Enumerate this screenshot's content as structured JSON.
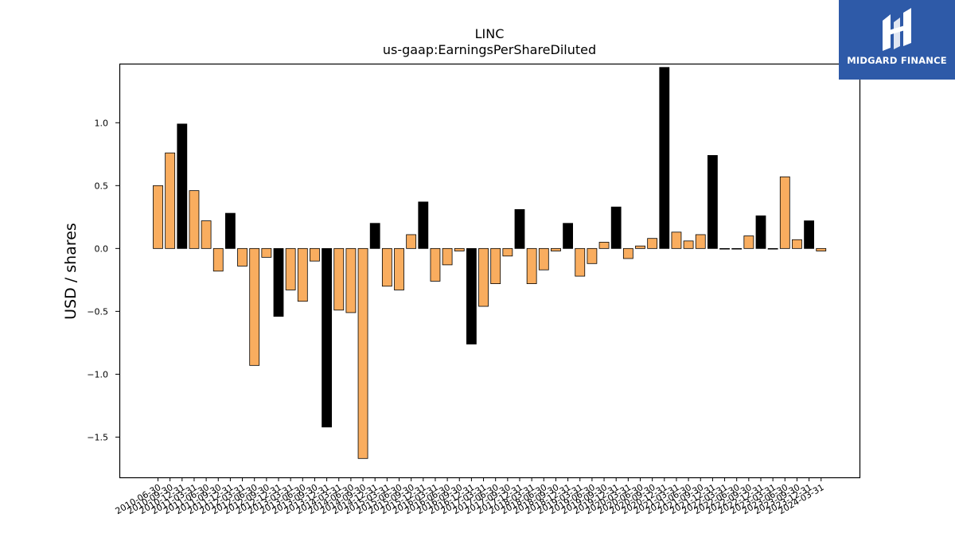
{
  "brand": {
    "name": "MIDGARD FINANCE",
    "bg_color": "#2e5aa8"
  },
  "chart_data": {
    "type": "bar",
    "title": "LINC",
    "subtitle": "us-gaap:EarningsPerShareDiluted",
    "ylabel": "USD / shares",
    "xlabel": "",
    "ylim": [
      -1.82,
      1.47
    ],
    "yticks": [
      1.0,
      0.5,
      0.0,
      -0.5,
      -1.0,
      -1.5
    ],
    "ytick_labels": [
      "1.0",
      "0.5",
      "0.0",
      "−0.5",
      "−1.0",
      "−1.5"
    ],
    "colors": {
      "quarter": "#f9ad5f",
      "annual": "#000000"
    },
    "categories": [
      "2010-06-30",
      "2010-09-30",
      "2010-12-31",
      "2011-03-31",
      "2011-06-30",
      "2011-09-30",
      "2011-12-31",
      "2012-03-31",
      "2012-06-30",
      "2012-09-30",
      "2012-12-31",
      "2013-03-31",
      "2013-06-30",
      "2013-09-30",
      "2013-12-31",
      "2014-03-31",
      "2014-06-30",
      "2014-09-30",
      "2014-12-31",
      "2015-03-31",
      "2015-06-30",
      "2015-09-30",
      "2015-12-31",
      "2016-03-31",
      "2016-06-30",
      "2016-09-30",
      "2016-12-31",
      "2017-03-31",
      "2017-06-30",
      "2017-09-30",
      "2017-12-31",
      "2018-03-31",
      "2018-06-30",
      "2018-09-30",
      "2018-12-31",
      "2019-03-31",
      "2019-06-30",
      "2019-09-30",
      "2019-12-31",
      "2020-03-31",
      "2020-06-30",
      "2020-09-30",
      "2020-12-31",
      "2021-03-31",
      "2021-06-30",
      "2021-09-30",
      "2021-12-31",
      "2022-03-31",
      "2022-06-30",
      "2022-09-30",
      "2022-12-31",
      "2023-03-31",
      "2023-06-30",
      "2023-09-30",
      "2023-12-31",
      "2024-03-31"
    ],
    "tick_labels": [
      "2010-06-30",
      "2010-09-30",
      "2010-12-31",
      "2011-03-31",
      "2011-06-30",
      "2011-09-30",
      "2011-12-31",
      "2012-03-31",
      "2012-06-30",
      "2012-09-30",
      "2012-12-31",
      "2013-03-31",
      "2013-06-30",
      "2013-09-30",
      "2013-12-31",
      "2014-03-31",
      "2014-06-30",
      "2014-09-30",
      "2014-12-31",
      "2015-03-31",
      "2015-06-30",
      "2015-09-30",
      "2015-12-31",
      "2016-03-31",
      "2016-06-30",
      "2016-09-30",
      "2016-12-31",
      "2017-03-31",
      "2017-06-30",
      "2017-09-30",
      "2017-12-31",
      "2018-03-31",
      "2018-06-30",
      "2018-09-30",
      "2018-12-31",
      "2019-03-31",
      "2019-06-30",
      "2019-09-30",
      "2019-12-31",
      "2020-03-31",
      "2020-06-30",
      "2020-09-30",
      "2020-12-31",
      "2021-03-31",
      "2021-06-30",
      "2021-09-30",
      "2021-12-31",
      "2022-03-31",
      "2022-06-30",
      "2022-09-30",
      "2022-12-31",
      "2023-03-31",
      "2023-06-30",
      "2023-09-30",
      "2023-12-31",
      "2024-03-31"
    ],
    "values": [
      0.5,
      0.76,
      0.99,
      0.46,
      0.22,
      -0.18,
      0.28,
      -0.14,
      -0.93,
      -0.07,
      -0.54,
      -0.33,
      -0.42,
      -0.1,
      -1.42,
      -0.49,
      -0.51,
      -1.67,
      0.2,
      -0.3,
      -0.33,
      0.11,
      0.37,
      -0.26,
      -0.13,
      -0.02,
      -0.76,
      -0.46,
      -0.28,
      -0.06,
      0.31,
      -0.28,
      -0.17,
      -0.02,
      0.2,
      -0.22,
      -0.12,
      0.05,
      0.33,
      -0.08,
      0.02,
      0.08,
      1.44,
      0.13,
      0.06,
      0.11,
      0.74,
      0.0,
      0.0,
      0.1,
      0.26,
      0.0,
      0.57,
      0.07,
      0.22,
      -0.02
    ],
    "is_annual": [
      false,
      false,
      true,
      false,
      false,
      false,
      true,
      false,
      false,
      false,
      true,
      false,
      false,
      false,
      true,
      false,
      false,
      false,
      true,
      false,
      false,
      false,
      true,
      false,
      false,
      false,
      true,
      false,
      false,
      false,
      true,
      false,
      false,
      false,
      true,
      false,
      false,
      false,
      true,
      false,
      false,
      false,
      true,
      false,
      false,
      false,
      true,
      false,
      false,
      false,
      true,
      false,
      false,
      false,
      true,
      false
    ]
  }
}
